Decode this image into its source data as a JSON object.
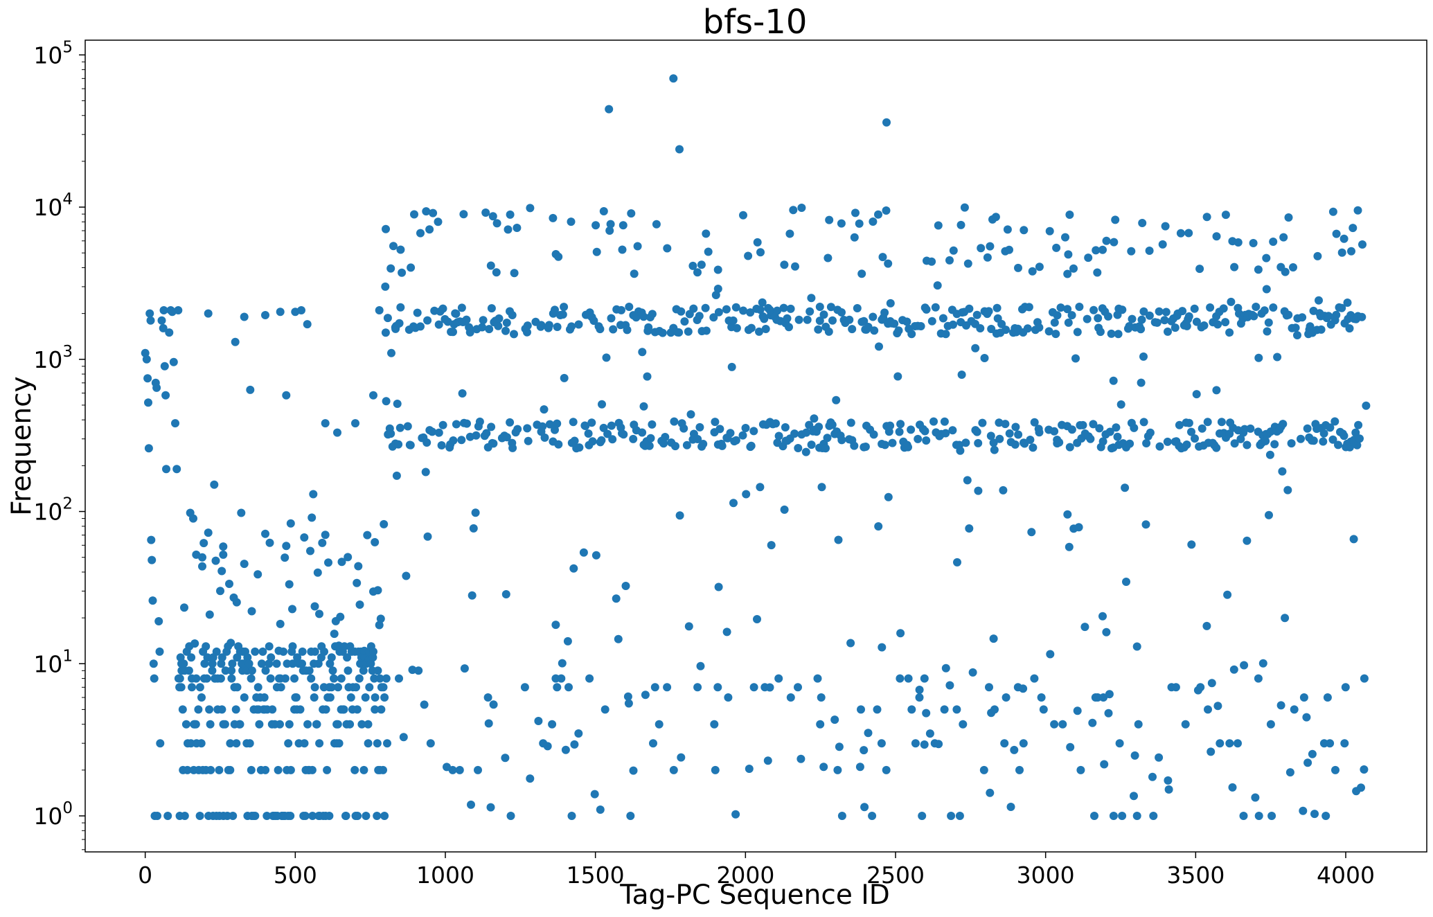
{
  "chart_data": {
    "type": "scatter",
    "title": "bfs-10",
    "xlabel": "Tag-PC Sequence ID",
    "ylabel": "Frequency",
    "xlim": [
      -200,
      4270
    ],
    "ylim": [
      0.58,
      125000
    ],
    "yscale": "log",
    "grid": false,
    "legend": "none",
    "color": "#1f77b4",
    "x_ticks": [
      0,
      500,
      1000,
      1500,
      2000,
      2500,
      3000,
      3500,
      4000
    ],
    "x_tick_labels": [
      "0",
      "500",
      "1000",
      "1500",
      "2000",
      "2500",
      "3000",
      "3500",
      "4000"
    ],
    "y_ticks": [
      1,
      10,
      100,
      1000,
      10000,
      100000
    ],
    "y_tick_labels": [
      {
        "base": "10",
        "exp": "0"
      },
      {
        "base": "10",
        "exp": "1"
      },
      {
        "base": "10",
        "exp": "2"
      },
      {
        "base": "10",
        "exp": "3"
      },
      {
        "base": "10",
        "exp": "4"
      },
      {
        "base": "10",
        "exp": "5"
      }
    ],
    "points_note_x_range": [
      0,
      4070
    ],
    "series": [
      {
        "values": [
          [
            0,
            1100
          ],
          [
            5,
            1000
          ],
          [
            8,
            750
          ],
          [
            10,
            520
          ],
          [
            12,
            260
          ],
          [
            15,
            2000
          ],
          [
            18,
            1800
          ],
          [
            20,
            65
          ],
          [
            22,
            48
          ],
          [
            25,
            26
          ],
          [
            28,
            10
          ],
          [
            30,
            8
          ],
          [
            32,
            1
          ],
          [
            35,
            700
          ],
          [
            38,
            650
          ],
          [
            40,
            1
          ],
          [
            45,
            19
          ],
          [
            48,
            12
          ],
          [
            50,
            3
          ],
          [
            55,
            1800
          ],
          [
            60,
            1600
          ],
          [
            62,
            2100
          ],
          [
            65,
            900
          ],
          [
            68,
            580
          ],
          [
            70,
            190
          ],
          [
            75,
            1
          ],
          [
            80,
            1500
          ],
          [
            85,
            2100
          ],
          [
            90,
            2050
          ],
          [
            95,
            960
          ],
          [
            100,
            380
          ],
          [
            105,
            190
          ],
          [
            110,
            2100
          ],
          [
            115,
            1
          ],
          [
            120,
            7
          ],
          [
            125,
            5
          ],
          [
            1545,
            44000
          ],
          [
            1760,
            70000
          ],
          [
            1780,
            24000
          ],
          [
            2470,
            36000
          ],
          [
            150,
            98
          ],
          [
            160,
            90
          ],
          [
            170,
            52
          ],
          [
            190,
            50
          ],
          [
            210,
            2000
          ],
          [
            230,
            150
          ],
          [
            260,
            52
          ],
          [
            300,
            1300
          ],
          [
            320,
            98
          ],
          [
            330,
            1900
          ],
          [
            350,
            630
          ],
          [
            400,
            1950
          ],
          [
            450,
            2050
          ],
          [
            470,
            580
          ],
          [
            500,
            2050
          ],
          [
            520,
            2100
          ],
          [
            540,
            1700
          ],
          [
            560,
            130
          ],
          [
            600,
            380
          ],
          [
            640,
            330
          ],
          [
            700,
            380
          ],
          [
            740,
            70
          ],
          [
            760,
            580
          ],
          [
            780,
            2100
          ],
          [
            800,
            3000
          ],
          [
            820,
            1100
          ],
          [
            840,
            510
          ]
        ]
      }
    ]
  }
}
